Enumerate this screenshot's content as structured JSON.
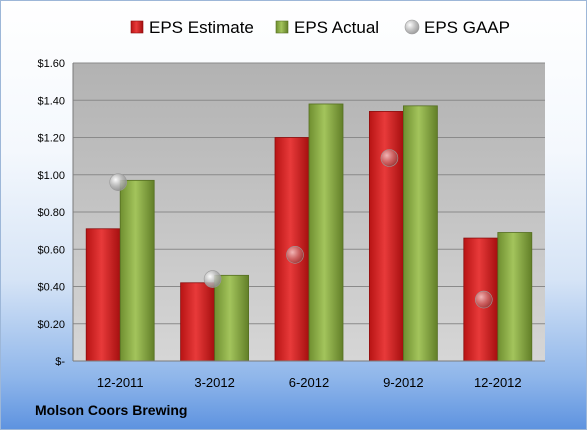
{
  "company": "Molson Coors Brewing",
  "chart_data": {
    "type": "bar",
    "categories": [
      "12-2011",
      "3-2012",
      "6-2012",
      "9-2012",
      "12-2012"
    ],
    "series": [
      {
        "name": "EPS Estimate",
        "type": "bar",
        "color": "#d42020",
        "values": [
          0.71,
          0.42,
          1.2,
          1.34,
          0.66
        ]
      },
      {
        "name": "EPS Actual",
        "type": "bar",
        "color": "#8fb04a",
        "values": [
          0.97,
          0.46,
          1.38,
          1.37,
          0.69
        ]
      },
      {
        "name": "EPS GAAP",
        "type": "scatter",
        "color": "#b0b0b0",
        "values": [
          0.96,
          0.44,
          0.57,
          1.09,
          0.33
        ]
      }
    ],
    "y_ticks": [
      {
        "value": 0,
        "label": "$-"
      },
      {
        "value": 0.2,
        "label": "$0.20"
      },
      {
        "value": 0.4,
        "label": "$0.40"
      },
      {
        "value": 0.6,
        "label": "$0.60"
      },
      {
        "value": 0.8,
        "label": "$0.80"
      },
      {
        "value": 1.0,
        "label": "$1.00"
      },
      {
        "value": 1.2,
        "label": "$1.20"
      },
      {
        "value": 1.4,
        "label": "$1.40"
      },
      {
        "value": 1.6,
        "label": "$1.60"
      }
    ],
    "ylim": [
      0,
      1.6
    ],
    "grid": true,
    "legend_position": "top",
    "title": "",
    "xlabel": "",
    "ylabel": ""
  }
}
